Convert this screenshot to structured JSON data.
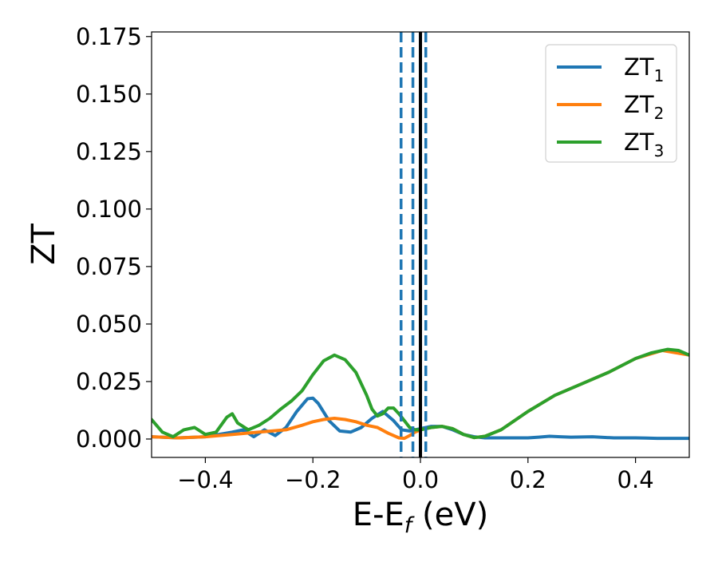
{
  "chart_data": {
    "type": "line",
    "xlabel": "E-E",
    "xlabel_sub": "f",
    "xlabel_unit": " (eV)",
    "ylabel": "ZT",
    "xlim": [
      -0.5,
      0.5
    ],
    "ylim": [
      -0.008,
      0.177
    ],
    "xticks": [
      -0.4,
      -0.2,
      0.0,
      0.2,
      0.4
    ],
    "xtick_labels": [
      "−0.4",
      "−0.2",
      "0.0",
      "0.2",
      "0.4"
    ],
    "yticks": [
      0.0,
      0.025,
      0.05,
      0.075,
      0.1,
      0.125,
      0.15,
      0.175
    ],
    "ytick_labels": [
      "0.000",
      "0.025",
      "0.050",
      "0.075",
      "0.100",
      "0.125",
      "0.150",
      "0.175"
    ],
    "grid": false,
    "legend_position": "top-right",
    "series": [
      {
        "name": "ZT",
        "name_sub": "1",
        "color": "#1f77b4",
        "x": [
          -0.5,
          -0.45,
          -0.4,
          -0.35,
          -0.33,
          -0.31,
          -0.29,
          -0.27,
          -0.25,
          -0.23,
          -0.21,
          -0.2,
          -0.19,
          -0.17,
          -0.15,
          -0.13,
          -0.11,
          -0.09,
          -0.07,
          -0.05,
          -0.035,
          -0.02,
          0.0,
          0.02,
          0.04,
          0.06,
          0.08,
          0.1,
          0.12,
          0.14,
          0.16,
          0.18,
          0.2,
          0.22,
          0.24,
          0.26,
          0.28,
          0.3,
          0.32,
          0.34,
          0.36,
          0.38,
          0.4,
          0.42,
          0.44,
          0.46,
          0.48,
          0.5
        ],
        "y": [
          0.001,
          0.0005,
          0.001,
          0.003,
          0.004,
          0.001,
          0.004,
          0.0015,
          0.005,
          0.012,
          0.0175,
          0.0178,
          0.0155,
          0.008,
          0.0035,
          0.003,
          0.005,
          0.009,
          0.012,
          0.008,
          0.004,
          0.0035,
          0.0045,
          0.0055,
          0.0055,
          0.004,
          0.002,
          0.001,
          0.0005,
          0.0005,
          0.0005,
          0.0005,
          0.0005,
          0.0008,
          0.0012,
          0.001,
          0.0008,
          0.0009,
          0.001,
          0.0007,
          0.0005,
          0.0005,
          0.0005,
          0.0004,
          0.0003,
          0.0003,
          0.0003,
          0.0003
        ]
      },
      {
        "name": "ZT",
        "name_sub": "2",
        "color": "#ff7f0e",
        "x": [
          -0.5,
          -0.45,
          -0.4,
          -0.35,
          -0.3,
          -0.25,
          -0.22,
          -0.2,
          -0.18,
          -0.16,
          -0.14,
          -0.12,
          -0.1,
          -0.08,
          -0.06,
          -0.04,
          -0.03,
          -0.02,
          -0.01,
          0.0,
          0.02,
          0.04,
          0.06,
          0.08,
          0.1,
          0.12,
          0.15,
          0.2,
          0.25,
          0.3,
          0.35,
          0.4,
          0.45,
          0.5
        ],
        "y": [
          0.001,
          0.0005,
          0.001,
          0.002,
          0.003,
          0.004,
          0.006,
          0.0075,
          0.0085,
          0.009,
          0.0085,
          0.0075,
          0.006,
          0.005,
          0.0025,
          0.0005,
          0.0003,
          0.0015,
          0.003,
          0.004,
          0.005,
          0.0055,
          0.0045,
          0.002,
          0.0006,
          0.0012,
          0.004,
          0.012,
          0.019,
          0.024,
          0.029,
          0.035,
          0.0385,
          0.0365
        ]
      },
      {
        "name": "ZT",
        "name_sub": "3",
        "color": "#2ca02c",
        "x": [
          -0.5,
          -0.48,
          -0.46,
          -0.44,
          -0.42,
          -0.4,
          -0.38,
          -0.36,
          -0.35,
          -0.34,
          -0.32,
          -0.3,
          -0.28,
          -0.26,
          -0.24,
          -0.22,
          -0.2,
          -0.18,
          -0.16,
          -0.14,
          -0.12,
          -0.1,
          -0.09,
          -0.08,
          -0.07,
          -0.06,
          -0.05,
          -0.04,
          -0.03,
          -0.02,
          -0.01,
          0.0,
          0.02,
          0.04,
          0.06,
          0.08,
          0.1,
          0.12,
          0.15,
          0.2,
          0.25,
          0.3,
          0.35,
          0.4,
          0.43,
          0.46,
          0.48,
          0.5
        ],
        "y": [
          0.0085,
          0.003,
          0.001,
          0.004,
          0.005,
          0.002,
          0.003,
          0.0095,
          0.011,
          0.007,
          0.004,
          0.006,
          0.009,
          0.013,
          0.0165,
          0.021,
          0.028,
          0.034,
          0.0365,
          0.0345,
          0.029,
          0.019,
          0.013,
          0.01,
          0.011,
          0.0135,
          0.0135,
          0.011,
          0.008,
          0.005,
          0.004,
          0.004,
          0.005,
          0.0055,
          0.0045,
          0.002,
          0.0006,
          0.0012,
          0.004,
          0.012,
          0.019,
          0.024,
          0.029,
          0.035,
          0.0375,
          0.039,
          0.0385,
          0.0365
        ]
      }
    ],
    "vlines": [
      {
        "x": 0.0,
        "color": "#000000",
        "style": "solid"
      },
      {
        "x": -0.036,
        "color": "#1f77b4",
        "style": "dashed"
      },
      {
        "x": -0.014,
        "color": "#1f77b4",
        "style": "dashed"
      },
      {
        "x": 0.01,
        "color": "#1f77b4",
        "style": "dashed"
      }
    ]
  }
}
